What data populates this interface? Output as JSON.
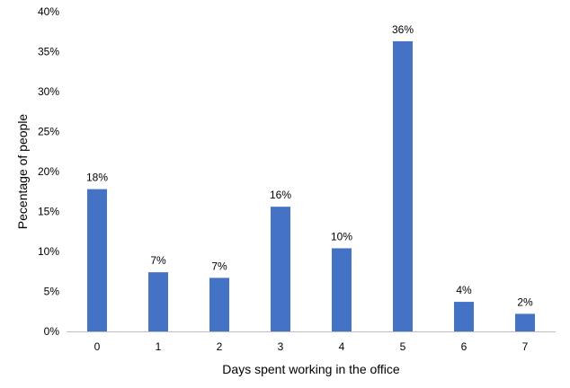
{
  "chart_data": {
    "type": "bar",
    "title": "",
    "xlabel": "Days spent working in the office",
    "ylabel": "Pecentage of people",
    "categories": [
      "0",
      "1",
      "2",
      "3",
      "4",
      "5",
      "6",
      "7"
    ],
    "values": [
      17.8,
      7.4,
      6.7,
      15.6,
      10.4,
      36.3,
      3.7,
      2.2
    ],
    "data_labels": [
      "18%",
      "7%",
      "7%",
      "16%",
      "10%",
      "36%",
      "4%",
      "2%"
    ],
    "ylim": [
      0,
      40
    ],
    "yticks": [
      0,
      5,
      10,
      15,
      20,
      25,
      30,
      35,
      40
    ],
    "ytick_labels": [
      "0%",
      "5%",
      "10%",
      "15%",
      "20%",
      "25%",
      "30%",
      "35%",
      "40%"
    ],
    "grid": false,
    "legend": "none",
    "bar_color": "#4472c4",
    "axis_color": "#bfbfbf"
  }
}
